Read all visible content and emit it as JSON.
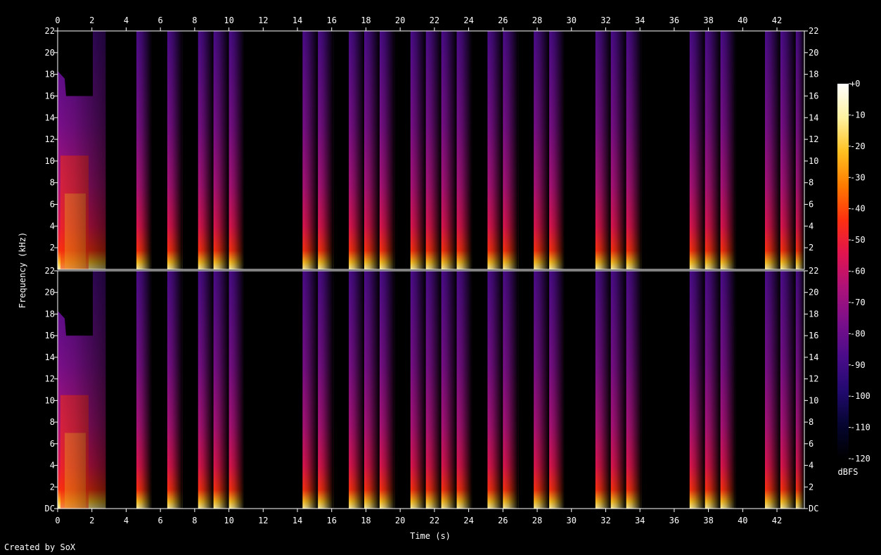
{
  "chart_data": {
    "type": "heatmap",
    "subtype": "spectrogram",
    "xlabel": "Time (s)",
    "ylabel": "Frequency (kHz)",
    "xlim": [
      0,
      43.6
    ],
    "ylim": [
      0,
      22
    ],
    "x_ticks": [
      "0",
      "2",
      "4",
      "6",
      "8",
      "10",
      "12",
      "14",
      "16",
      "18",
      "20",
      "22",
      "24",
      "26",
      "28",
      "30",
      "32",
      "34",
      "36",
      "38",
      "40",
      "42"
    ],
    "y_ticks": [
      "DC",
      "2",
      "4",
      "6",
      "8",
      "10",
      "12",
      "14",
      "16",
      "18",
      "20",
      "22"
    ],
    "channels": 2,
    "colorbar": {
      "label": "dBFS",
      "ticks": [
        "+0",
        "-10",
        "-20",
        "-30",
        "-40",
        "-50",
        "-60",
        "-70",
        "-80",
        "-90",
        "-100",
        "-110",
        "-120"
      ],
      "range": [
        -120,
        0
      ]
    },
    "note_text": "Created by SoX",
    "events": {
      "time_start_s": [
        0.0,
        4.6,
        6.4,
        8.2,
        9.1,
        10.0,
        14.3,
        15.2,
        17.0,
        17.9,
        18.8,
        20.6,
        21.5,
        22.4,
        23.3,
        25.1,
        26.0,
        27.8,
        28.7,
        31.4,
        32.3,
        33.2,
        36.9,
        37.8,
        38.7,
        41.3,
        42.2,
        43.1
      ],
      "duration_s": [
        2.8,
        0.9,
        0.9,
        0.9,
        0.9,
        0.9,
        0.9,
        0.9,
        0.9,
        0.9,
        0.9,
        0.9,
        0.9,
        0.9,
        0.9,
        0.9,
        0.9,
        0.9,
        0.9,
        0.9,
        0.9,
        0.9,
        0.9,
        0.9,
        0.9,
        0.9,
        0.9,
        0.5
      ]
    },
    "background_dbfs": -120,
    "colors": {
      "background": "#000000",
      "frame": "#ffffff",
      "colormap": [
        "#000000",
        "#050530",
        "#220a70",
        "#4a0c8a",
        "#7a0f8a",
        "#ac127a",
        "#e01450",
        "#ff3010",
        "#ff7a00",
        "#ffc020",
        "#fff2a0",
        "#ffffff"
      ]
    }
  }
}
